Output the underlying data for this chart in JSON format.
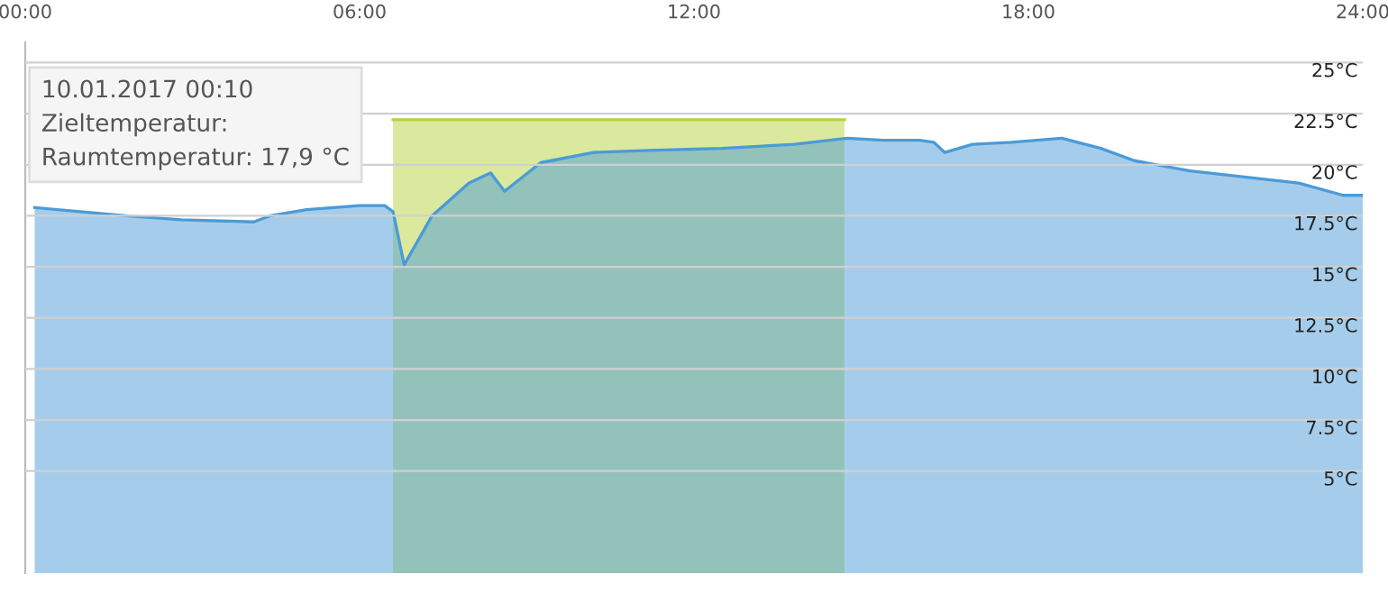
{
  "chart_data": {
    "type": "area",
    "x": [
      0.17,
      1.8,
      2.8,
      4.1,
      4.4,
      5.05,
      6.0,
      6.45,
      6.6,
      6.8,
      7.3,
      7.96,
      8.35,
      8.6,
      9.25,
      10.2,
      11.2,
      12.5,
      13.8,
      14.75,
      15.4,
      16.05,
      16.3,
      16.5,
      17.0,
      17.7,
      18.6,
      19.3,
      19.9,
      20.9,
      22.2,
      22.85,
      23.65,
      24.0
    ],
    "series": [
      {
        "color": "#b5d33d",
        "x": [
          6.6,
          14.7
        ],
        "values": [
          22.2,
          22.2
        ]
      },
      {
        "color": "#4b9bd7",
        "values": [
          17.9,
          17.5,
          17.3,
          17.2,
          17.5,
          17.8,
          18.0,
          18.0,
          17.7,
          15.1,
          17.5,
          19.1,
          19.6,
          18.7,
          20.1,
          20.6,
          20.7,
          20.8,
          21.0,
          21.3,
          21.2,
          21.2,
          21.1,
          20.6,
          21.0,
          21.1,
          21.3,
          20.8,
          20.2,
          19.7,
          19.3,
          19.1,
          18.5,
          18.5
        ]
      }
    ],
    "xlim": [
      0,
      24
    ],
    "xticks": [
      {
        "value": 0,
        "label": "00:00"
      },
      {
        "value": 6,
        "label": "06:00"
      },
      {
        "value": 12,
        "label": "12:00"
      },
      {
        "value": 18,
        "label": "18:00"
      },
      {
        "value": 24,
        "label": "24:00"
      }
    ],
    "ylim": [
      0,
      26
    ],
    "yticks": [
      {
        "value": 5,
        "label": "5°C"
      },
      {
        "value": 7.5,
        "label": "7.5°C"
      },
      {
        "value": 10,
        "label": "10°C"
      },
      {
        "value": 12.5,
        "label": "12.5°C"
      },
      {
        "value": 15,
        "label": "15°C"
      },
      {
        "value": 17.5,
        "label": "17.5°C"
      },
      {
        "value": 20,
        "label": "20°C"
      },
      {
        "value": 22.5,
        "label": "22.5°C"
      },
      {
        "value": 25,
        "label": "25°C"
      }
    ],
    "grid": "y",
    "annotations": [
      "10.01.2017 00:10",
      "Zieltemperatur:",
      "Raumtemperatur: 17,9 °C"
    ]
  }
}
